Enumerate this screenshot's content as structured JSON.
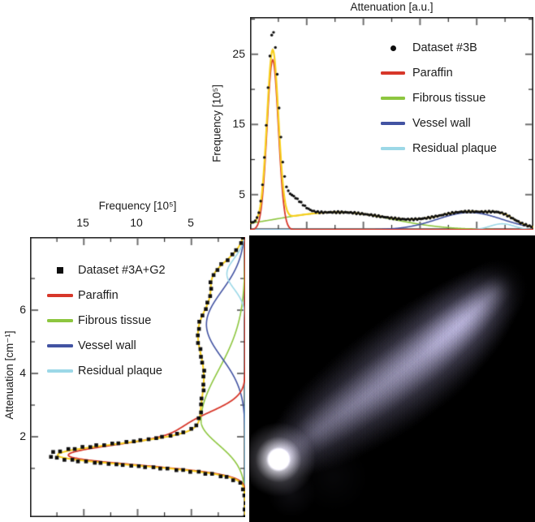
{
  "figure": {
    "top_chart": {
      "title": "Attenuation [a.u.]",
      "ylabel": "Frequency [10⁵]",
      "yticks": [
        "25",
        "15",
        "5"
      ],
      "legend": [
        {
          "label": "Dataset #3B",
          "marker": "dot",
          "color": "#0e0e0e"
        },
        {
          "label": "Paraffin",
          "marker": "line",
          "color": "#d7372a"
        },
        {
          "label": "Fibrous tissue",
          "marker": "line",
          "color": "#8dc63f"
        },
        {
          "label": "Vessel wall",
          "marker": "line",
          "color": "#4253a2"
        },
        {
          "label": "Residual plaque",
          "marker": "line",
          "color": "#9cd8e7"
        }
      ]
    },
    "left_chart": {
      "title": "Frequency [10⁵]",
      "ylabel": "Attenuation [cm⁻¹]",
      "xticks": [
        "15",
        "10",
        "5"
      ],
      "yticks": [
        "6",
        "4",
        "2"
      ],
      "legend": [
        {
          "label": "Dataset #3A+G2",
          "marker": "square",
          "color": "#0e0e0e"
        },
        {
          "label": "Paraffin",
          "marker": "line",
          "color": "#d7372a"
        },
        {
          "label": "Fibrous tissue",
          "marker": "line",
          "color": "#8dc63f"
        },
        {
          "label": "Vessel wall",
          "marker": "line",
          "color": "#4253a2"
        },
        {
          "label": "Residual plaque",
          "marker": "line",
          "color": "#9cd8e7"
        }
      ]
    }
  },
  "chart_data": [
    {
      "id": "top-marginal-histogram",
      "type": "line",
      "title": "Attenuation [a.u.]",
      "xlabel": "Attenuation [a.u.]",
      "ylabel": "Frequency [10^5]",
      "xlim": [
        0,
        10
      ],
      "ylim": [
        0,
        30.3
      ],
      "xticks_major": [
        2,
        4,
        6,
        8
      ],
      "xticks_minor": [
        1,
        3,
        5,
        7,
        9
      ],
      "yticks_major": [
        5,
        15,
        25
      ],
      "yticks_minor": [
        10,
        20,
        30
      ],
      "grid": false,
      "legend_position": "upper-right",
      "components": [
        {
          "name": "Paraffin",
          "color": "#d7372a",
          "peaks": [
            {
              "amp": 24.2,
              "mu": 0.8,
              "sigma": 0.2
            }
          ]
        },
        {
          "name": "Fibrous tissue",
          "color": "#8dc63f",
          "peaks": [
            {
              "amp": 2.5,
              "mu": 3.1,
              "sigma": 2.2,
              "sigma_hi": 1.9
            }
          ]
        },
        {
          "name": "Vessel wall",
          "color": "#4253a2",
          "peaks": [
            {
              "amp": 2.45,
              "mu": 7.75,
              "sigma": 1.15
            }
          ]
        },
        {
          "name": "Residual plaque",
          "color": "#9cd8e7",
          "peaks": [
            {
              "amp": 0.85,
              "mu": 8.9,
              "sigma": 0.42
            }
          ]
        }
      ],
      "total_fit": {
        "color": "#f8cf1d",
        "peaks": [
          {
            "amp": 24.2,
            "mu": 0.8,
            "sigma": 0.2
          },
          {
            "amp": 2.5,
            "mu": 3.1,
            "sigma": 2.2,
            "sigma_hi": 1.9
          },
          {
            "amp": 2.45,
            "mu": 7.75,
            "sigma": 1.15
          },
          {
            "amp": 0.85,
            "mu": 8.9,
            "sigma": 0.42
          }
        ]
      },
      "data_series": {
        "name": "Dataset #3B",
        "marker": "dot",
        "color": "#0e0e0e",
        "peak_value": 26.5,
        "extra_peaks": [
          {
            "amp": 1.4,
            "mu": 0.8,
            "sigma": 0.2
          },
          {
            "amp": 3.1,
            "mu": 1.35,
            "sigma": 0.4,
            "sigma_hi": 0.42
          }
        ]
      }
    },
    {
      "id": "left-marginal-histogram",
      "type": "line",
      "orientation": "horizontal-reversed",
      "title": "Frequency [10^5]",
      "xlabel": "Frequency [10^5]",
      "ylabel": "Attenuation [cm^-1]",
      "freq_lim": [
        0,
        20
      ],
      "att_lim": [
        -0.54,
        8.31
      ],
      "freq_ticks_major": [
        5,
        10,
        15
      ],
      "freq_ticks_minor": [
        2.5,
        7.5,
        12.5,
        17.5
      ],
      "att_ticks_major": [
        2,
        4,
        6
      ],
      "att_ticks_minor": [
        1,
        3,
        5,
        7
      ],
      "grid": false,
      "legend_position": "upper-left",
      "components": [
        {
          "name": "Paraffin",
          "color": "#d7372a",
          "peaks": [
            {
              "amp": 16.0,
              "mu": 1.4,
              "sigma": 0.3,
              "sigma_hi": 0.36
            },
            {
              "amp": 5.2,
              "mu": 2.3,
              "sigma": 0.4,
              "sigma_hi": 0.5
            }
          ]
        },
        {
          "name": "Fibrous tissue",
          "color": "#8dc63f",
          "peaks": [
            {
              "amp": 4.1,
              "mu": 2.5,
              "sigma": 0.75,
              "sigma_hi": 1.6
            }
          ]
        },
        {
          "name": "Vessel wall",
          "color": "#4253a2",
          "peaks": [
            {
              "amp": 3.6,
              "mu": 5.55,
              "sigma": 1.05
            }
          ]
        },
        {
          "name": "Residual plaque",
          "color": "#9cd8e7",
          "peaks": [
            {
              "amp": 1.7,
              "mu": 7.15,
              "sigma": 0.48
            }
          ]
        }
      ],
      "total_fit": {
        "color": "#f8cf1d",
        "peaks": [
          {
            "amp": 16.0,
            "mu": 1.4,
            "sigma": 0.3,
            "sigma_hi": 0.36
          },
          {
            "amp": 4.1,
            "mu": 2.5,
            "sigma": 0.75,
            "sigma_hi": 1.6
          },
          {
            "amp": 3.6,
            "mu": 5.55,
            "sigma": 1.05
          },
          {
            "amp": 1.7,
            "mu": 7.15,
            "sigma": 0.48
          }
        ]
      },
      "data_series": {
        "name": "Dataset #3A+G2",
        "marker": "square",
        "color": "#0e0e0e",
        "peak_value": 17.5,
        "extra_peaks": [
          {
            "amp": 0.8,
            "mu": 1.35,
            "sigma": 0.45
          }
        ]
      }
    },
    {
      "id": "joint-density-map",
      "type": "heatmap",
      "description": "2D kernel density of attenuation (Dataset #3B vs #3A+G2): bright white core at low attenuation (paraffin) with an elongated lavender diagonal ridge toward high attenuation",
      "background": "#000000",
      "ridge_color_rgb": [
        133,
        128,
        164
      ],
      "streak_color_rgb": [
        186,
        183,
        206
      ],
      "core_color": "#ffffff",
      "spine": [
        [
          40,
          274
        ],
        [
          96,
          232
        ],
        [
          156,
          190
        ],
        [
          216,
          146
        ],
        [
          266,
          104
        ],
        [
          308,
          64
        ]
      ],
      "radii": [
        32,
        58,
        68,
        68,
        56,
        38
      ],
      "intensity": [
        0.55,
        0.52,
        0.56,
        0.62,
        0.8,
        0.42
      ],
      "core": {
        "x": 36,
        "y": 276,
        "r": 46
      },
      "tails": [
        {
          "x": 52,
          "y": 318,
          "r": 30,
          "alpha": 0.3
        },
        {
          "x": 104,
          "y": 298,
          "r": 44,
          "alpha": 0.16
        }
      ]
    }
  ]
}
